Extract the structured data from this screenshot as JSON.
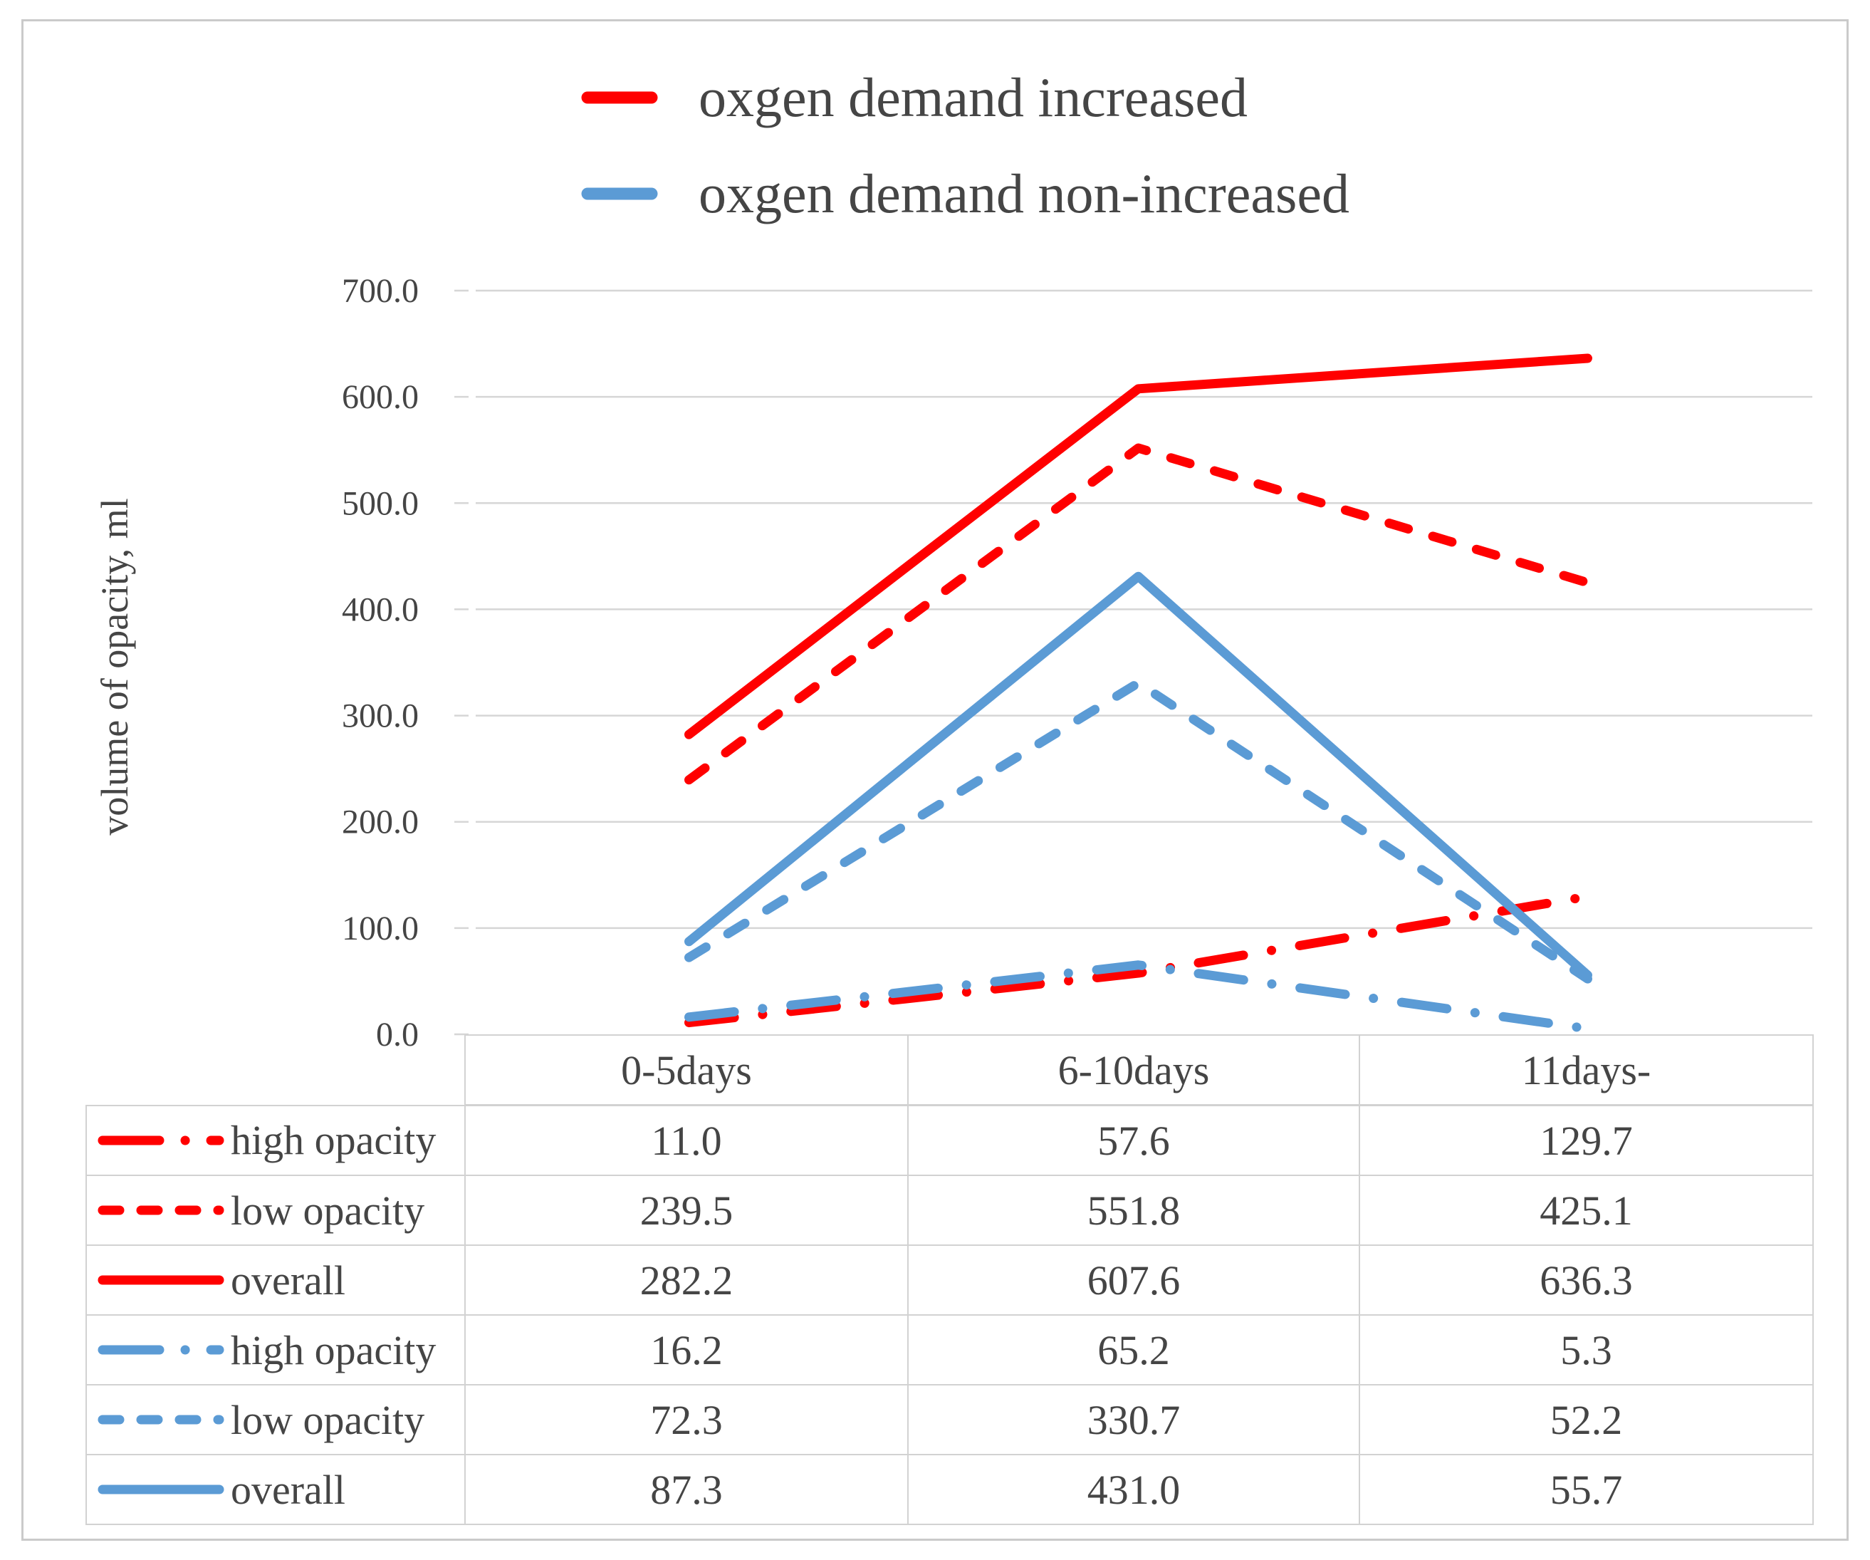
{
  "legend": {
    "items": [
      {
        "label": "oxgen demand increased",
        "color": "#ff0000"
      },
      {
        "label": "oxgen demand non-increased",
        "color": "#5b9bd5"
      }
    ]
  },
  "chart_data": {
    "type": "line",
    "title": "",
    "ylabel": "volume of opacity, ml",
    "xlabel": "",
    "categories": [
      "0-5days",
      "6-10days",
      "11days-"
    ],
    "ylim": [
      0,
      700
    ],
    "ytick_step": 100,
    "ytick_labels": [
      "0.0",
      "100.0",
      "200.0",
      "300.0",
      "400.0",
      "500.0",
      "600.0",
      "700.0"
    ],
    "grid": true,
    "legend_position": "top",
    "series": [
      {
        "name": "high opacity",
        "group": "oxgen demand increased",
        "color": "#ff0000",
        "line_style": "long-dash-dot",
        "values": [
          11.0,
          57.6,
          129.7
        ]
      },
      {
        "name": "low opacity",
        "group": "oxgen demand increased",
        "color": "#ff0000",
        "line_style": "dash",
        "values": [
          239.5,
          551.8,
          425.1
        ]
      },
      {
        "name": "overall",
        "group": "oxgen demand increased",
        "color": "#ff0000",
        "line_style": "solid",
        "values": [
          282.2,
          607.6,
          636.3
        ]
      },
      {
        "name": "high opacity",
        "group": "oxgen demand non-increased",
        "color": "#5b9bd5",
        "line_style": "long-dash-dot",
        "values": [
          16.2,
          65.2,
          5.3
        ]
      },
      {
        "name": "low opacity",
        "group": "oxgen demand non-increased",
        "color": "#5b9bd5",
        "line_style": "dash",
        "values": [
          72.3,
          330.7,
          52.2
        ]
      },
      {
        "name": "overall",
        "group": "oxgen demand non-increased",
        "color": "#5b9bd5",
        "line_style": "solid",
        "values": [
          87.3,
          431.0,
          55.7
        ]
      }
    ],
    "value_decimals": 1
  },
  "colors": {
    "red_series": "#ff0000",
    "blue_series": "#5b9bd5",
    "text": "#454545",
    "gridline": "#d6d6d6",
    "table_border": "#d2d2d2",
    "frame_border": "#cacaca"
  }
}
